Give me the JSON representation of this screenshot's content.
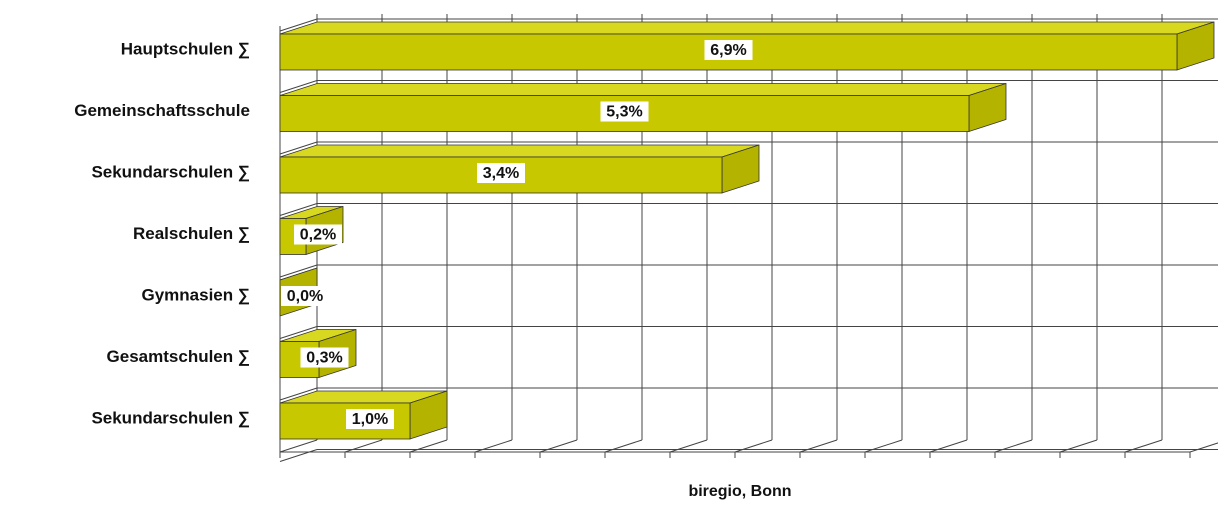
{
  "chart_data": {
    "type": "bar3d_horizontal",
    "categories": [
      "Hauptschulen ∑",
      "Gemeinschaftsschule",
      "Sekundarschulen ∑",
      "Realschulen ∑",
      "Gymnasien ∑",
      "Gesamtschulen ∑",
      "Sekundarschulen ∑"
    ],
    "values": [
      6.9,
      5.3,
      3.4,
      0.2,
      0.0,
      0.3,
      1.0
    ],
    "value_labels": [
      "6,9%",
      "5,3%",
      "3,4%",
      "0,2%",
      "0,0%",
      "0,3%",
      "1,0%"
    ],
    "color": "#c8c800",
    "xlim": [
      0,
      7
    ],
    "xticks": [
      0,
      0.5,
      1,
      1.5,
      2,
      2.5,
      3,
      3.5,
      4,
      4.5,
      5,
      5.5,
      6,
      6.5,
      7
    ],
    "grid": true,
    "caption": "biregio, Bonn"
  }
}
